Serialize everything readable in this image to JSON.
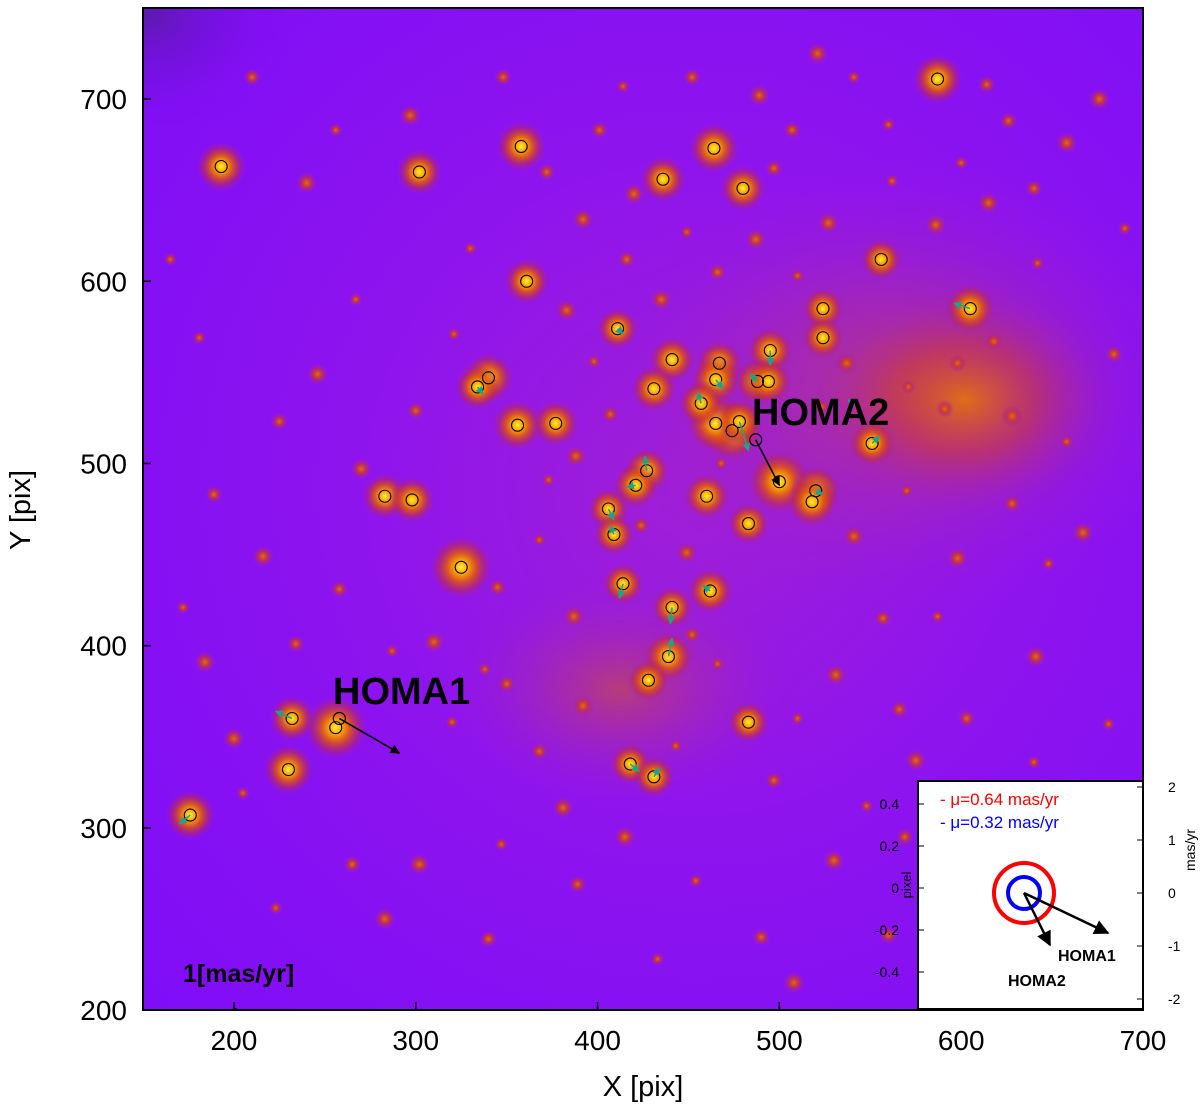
{
  "figure": {
    "type": "annotated-astronomical-image",
    "axes": {
      "xlabel": "X [pix]",
      "ylabel": "Y [pix]",
      "xlim": [
        150,
        700
      ],
      "ylim": [
        200,
        750
      ],
      "xticks": [
        "200",
        "300",
        "400",
        "500",
        "600",
        "700"
      ],
      "yticks": [
        "200",
        "300",
        "400",
        "500",
        "600",
        "700"
      ]
    },
    "colors": {
      "background": "#8a10f4",
      "star_core": "#ffe000",
      "star_glow": "#e06a00",
      "marker": "#000000",
      "arrow_small": "#1ea38a",
      "arrow_main": "#000000"
    },
    "labels": {
      "homa1": "HOMA1",
      "homa2": "HOMA2",
      "scale": "1[mas/yr]"
    },
    "homa1": {
      "x": 258,
      "y": 360,
      "dx": 33,
      "dy": -19
    },
    "homa2": {
      "x": 487,
      "y": 513,
      "dx": 13,
      "dy": -25
    },
    "bright_stars": [
      {
        "x": 325,
        "y": 443,
        "b": 1.0
      },
      {
        "x": 256,
        "y": 355,
        "b": 1.0
      },
      {
        "x": 500,
        "y": 490,
        "b": 1.0
      },
      {
        "x": 474,
        "y": 518,
        "b": 0.95
      },
      {
        "x": 465,
        "y": 522,
        "b": 0.9
      },
      {
        "x": 340,
        "y": 547,
        "b": 0.7
      },
      {
        "x": 356,
        "y": 521,
        "b": 0.7
      },
      {
        "x": 334,
        "y": 542,
        "b": 0.6
      },
      {
        "x": 377,
        "y": 522,
        "b": 0.6
      },
      {
        "x": 283,
        "y": 482,
        "b": 0.6
      },
      {
        "x": 298,
        "y": 480,
        "b": 0.6
      },
      {
        "x": 230,
        "y": 332,
        "b": 0.7
      },
      {
        "x": 232,
        "y": 360,
        "b": 0.6
      },
      {
        "x": 176,
        "y": 307,
        "b": 0.7
      },
      {
        "x": 193,
        "y": 663,
        "b": 0.7
      },
      {
        "x": 302,
        "y": 660,
        "b": 0.6
      },
      {
        "x": 358,
        "y": 674,
        "b": 0.7
      },
      {
        "x": 436,
        "y": 656,
        "b": 0.6
      },
      {
        "x": 464,
        "y": 673,
        "b": 0.7
      },
      {
        "x": 480,
        "y": 651,
        "b": 0.6
      },
      {
        "x": 587,
        "y": 711,
        "b": 0.7
      },
      {
        "x": 361,
        "y": 600,
        "b": 0.6
      },
      {
        "x": 556,
        "y": 612,
        "b": 0.5
      },
      {
        "x": 605,
        "y": 585,
        "b": 0.7
      },
      {
        "x": 524,
        "y": 585,
        "b": 0.5
      },
      {
        "x": 524,
        "y": 569,
        "b": 0.5
      },
      {
        "x": 495,
        "y": 562,
        "b": 0.6
      },
      {
        "x": 411,
        "y": 574,
        "b": 0.5
      },
      {
        "x": 441,
        "y": 557,
        "b": 0.6
      },
      {
        "x": 467,
        "y": 555,
        "b": 0.6
      },
      {
        "x": 465,
        "y": 546,
        "b": 0.7
      },
      {
        "x": 488,
        "y": 545,
        "b": 0.6
      },
      {
        "x": 494,
        "y": 545,
        "b": 0.6
      },
      {
        "x": 431,
        "y": 541,
        "b": 0.6
      },
      {
        "x": 457,
        "y": 533,
        "b": 0.6
      },
      {
        "x": 478,
        "y": 523,
        "b": 0.6
      },
      {
        "x": 551,
        "y": 511,
        "b": 0.6
      },
      {
        "x": 427,
        "y": 496,
        "b": 0.6
      },
      {
        "x": 421,
        "y": 488,
        "b": 0.6
      },
      {
        "x": 460,
        "y": 482,
        "b": 0.6
      },
      {
        "x": 520,
        "y": 485,
        "b": 0.7
      },
      {
        "x": 518,
        "y": 479,
        "b": 0.7
      },
      {
        "x": 406,
        "y": 475,
        "b": 0.5
      },
      {
        "x": 483,
        "y": 467,
        "b": 0.5
      },
      {
        "x": 409,
        "y": 461,
        "b": 0.5
      },
      {
        "x": 414,
        "y": 434,
        "b": 0.5
      },
      {
        "x": 462,
        "y": 430,
        "b": 0.6
      },
      {
        "x": 441,
        "y": 421,
        "b": 0.5
      },
      {
        "x": 439,
        "y": 394,
        "b": 0.7
      },
      {
        "x": 428,
        "y": 381,
        "b": 0.5
      },
      {
        "x": 483,
        "y": 358,
        "b": 0.5
      },
      {
        "x": 418,
        "y": 335,
        "b": 0.5
      },
      {
        "x": 431,
        "y": 328,
        "b": 0.5
      }
    ],
    "faint_stars": [
      {
        "x": 165,
        "y": 612
      },
      {
        "x": 210,
        "y": 712
      },
      {
        "x": 240,
        "y": 654
      },
      {
        "x": 267,
        "y": 590
      },
      {
        "x": 225,
        "y": 523
      },
      {
        "x": 270,
        "y": 497
      },
      {
        "x": 330,
        "y": 618
      },
      {
        "x": 372,
        "y": 660
      },
      {
        "x": 392,
        "y": 634
      },
      {
        "x": 414,
        "y": 707
      },
      {
        "x": 452,
        "y": 712
      },
      {
        "x": 521,
        "y": 725
      },
      {
        "x": 560,
        "y": 686
      },
      {
        "x": 614,
        "y": 708
      },
      {
        "x": 658,
        "y": 676
      },
      {
        "x": 642,
        "y": 610
      },
      {
        "x": 684,
        "y": 560
      },
      {
        "x": 667,
        "y": 462
      },
      {
        "x": 648,
        "y": 445
      },
      {
        "x": 628,
        "y": 478
      },
      {
        "x": 598,
        "y": 448
      },
      {
        "x": 587,
        "y": 416
      },
      {
        "x": 603,
        "y": 360
      },
      {
        "x": 641,
        "y": 394
      },
      {
        "x": 681,
        "y": 357
      },
      {
        "x": 566,
        "y": 365
      },
      {
        "x": 531,
        "y": 384
      },
      {
        "x": 510,
        "y": 360
      },
      {
        "x": 452,
        "y": 406
      },
      {
        "x": 387,
        "y": 416
      },
      {
        "x": 368,
        "y": 458
      },
      {
        "x": 345,
        "y": 432
      },
      {
        "x": 310,
        "y": 402
      },
      {
        "x": 287,
        "y": 397
      },
      {
        "x": 258,
        "y": 431
      },
      {
        "x": 200,
        "y": 349
      },
      {
        "x": 205,
        "y": 319
      },
      {
        "x": 265,
        "y": 280
      },
      {
        "x": 302,
        "y": 280
      },
      {
        "x": 347,
        "y": 291
      },
      {
        "x": 389,
        "y": 269
      },
      {
        "x": 415,
        "y": 295
      },
      {
        "x": 454,
        "y": 271
      },
      {
        "x": 490,
        "y": 240
      },
      {
        "x": 530,
        "y": 282
      },
      {
        "x": 548,
        "y": 312
      },
      {
        "x": 569,
        "y": 295
      },
      {
        "x": 602,
        "y": 321
      },
      {
        "x": 338,
        "y": 387
      },
      {
        "x": 368,
        "y": 342
      },
      {
        "x": 392,
        "y": 367
      },
      {
        "x": 466,
        "y": 390
      },
      {
        "x": 557,
        "y": 415
      },
      {
        "x": 541,
        "y": 460
      },
      {
        "x": 570,
        "y": 485
      },
      {
        "x": 591,
        "y": 530
      },
      {
        "x": 628,
        "y": 526
      },
      {
        "x": 658,
        "y": 512
      },
      {
        "x": 618,
        "y": 567
      },
      {
        "x": 586,
        "y": 631
      },
      {
        "x": 562,
        "y": 655
      },
      {
        "x": 507,
        "y": 683
      },
      {
        "x": 487,
        "y": 623
      },
      {
        "x": 449,
        "y": 627
      },
      {
        "x": 416,
        "y": 612
      },
      {
        "x": 383,
        "y": 584
      },
      {
        "x": 398,
        "y": 556
      },
      {
        "x": 407,
        "y": 527
      },
      {
        "x": 388,
        "y": 504
      },
      {
        "x": 373,
        "y": 491
      },
      {
        "x": 424,
        "y": 466
      },
      {
        "x": 449,
        "y": 451
      },
      {
        "x": 468,
        "y": 500
      },
      {
        "x": 523,
        "y": 531
      },
      {
        "x": 537,
        "y": 555
      },
      {
        "x": 571,
        "y": 542
      },
      {
        "x": 598,
        "y": 555
      },
      {
        "x": 527,
        "y": 632
      },
      {
        "x": 510,
        "y": 603
      },
      {
        "x": 466,
        "y": 605
      },
      {
        "x": 435,
        "y": 590
      },
      {
        "x": 321,
        "y": 571
      },
      {
        "x": 300,
        "y": 529
      },
      {
        "x": 246,
        "y": 549
      },
      {
        "x": 181,
        "y": 569
      },
      {
        "x": 189,
        "y": 483
      },
      {
        "x": 216,
        "y": 449
      },
      {
        "x": 172,
        "y": 421
      },
      {
        "x": 234,
        "y": 401
      },
      {
        "x": 184,
        "y": 391
      },
      {
        "x": 320,
        "y": 358
      },
      {
        "x": 350,
        "y": 379
      },
      {
        "x": 381,
        "y": 311
      },
      {
        "x": 443,
        "y": 345
      },
      {
        "x": 497,
        "y": 326
      },
      {
        "x": 575,
        "y": 337
      },
      {
        "x": 640,
        "y": 336
      },
      {
        "x": 682,
        "y": 300
      },
      {
        "x": 660,
        "y": 255
      },
      {
        "x": 612,
        "y": 253
      },
      {
        "x": 560,
        "y": 241
      },
      {
        "x": 508,
        "y": 215
      },
      {
        "x": 433,
        "y": 228
      },
      {
        "x": 340,
        "y": 239
      },
      {
        "x": 283,
        "y": 250
      },
      {
        "x": 223,
        "y": 256
      },
      {
        "x": 348,
        "y": 712
      },
      {
        "x": 297,
        "y": 691
      },
      {
        "x": 256,
        "y": 683
      },
      {
        "x": 401,
        "y": 683
      },
      {
        "x": 489,
        "y": 702
      },
      {
        "x": 541,
        "y": 712
      },
      {
        "x": 626,
        "y": 688
      },
      {
        "x": 676,
        "y": 700
      },
      {
        "x": 690,
        "y": 629
      },
      {
        "x": 640,
        "y": 651
      },
      {
        "x": 615,
        "y": 643
      },
      {
        "x": 600,
        "y": 665
      },
      {
        "x": 497,
        "y": 662
      },
      {
        "x": 420,
        "y": 648
      }
    ],
    "motion_arrows": [
      {
        "x": 232,
        "y": 360,
        "dx": -9,
        "dy": 4
      },
      {
        "x": 176,
        "y": 307,
        "dx": -6,
        "dy": -5
      },
      {
        "x": 605,
        "y": 585,
        "dx": -9,
        "dy": 3
      },
      {
        "x": 495,
        "y": 562,
        "dx": 0,
        "dy": -8
      },
      {
        "x": 551,
        "y": 511,
        "dx": 4,
        "dy": 4
      },
      {
        "x": 478,
        "y": 523,
        "dx": 5,
        "dy": -16
      },
      {
        "x": 465,
        "y": 546,
        "dx": 4,
        "dy": -5
      },
      {
        "x": 457,
        "y": 533,
        "dx": -2,
        "dy": 6
      },
      {
        "x": 427,
        "y": 496,
        "dx": -1,
        "dy": 8
      },
      {
        "x": 421,
        "y": 488,
        "dx": -5,
        "dy": -1
      },
      {
        "x": 520,
        "y": 485,
        "dx": 4,
        "dy": -2
      },
      {
        "x": 406,
        "y": 475,
        "dx": 3,
        "dy": -6
      },
      {
        "x": 409,
        "y": 461,
        "dx": -2,
        "dy": 5
      },
      {
        "x": 414,
        "y": 434,
        "dx": -2,
        "dy": -8
      },
      {
        "x": 462,
        "y": 430,
        "dx": -4,
        "dy": 3
      },
      {
        "x": 441,
        "y": 421,
        "dx": -1,
        "dy": -9
      },
      {
        "x": 439,
        "y": 394,
        "dx": 2,
        "dy": 10
      },
      {
        "x": 431,
        "y": 328,
        "dx": 3,
        "dy": 5
      },
      {
        "x": 418,
        "y": 335,
        "dx": 5,
        "dy": -4
      },
      {
        "x": 411,
        "y": 574,
        "dx": 3,
        "dy": -3
      },
      {
        "x": 334,
        "y": 542,
        "dx": 3,
        "dy": -4
      },
      {
        "x": 488,
        "y": 545,
        "dx": -4,
        "dy": 4
      },
      {
        "x": 541,
        "y": 532,
        "dx": -3,
        "dy": 3
      }
    ]
  },
  "inset": {
    "legend": [
      "- μ=0.64 mas/yr",
      "- μ=0.32 mas/yr"
    ],
    "legend_colors": [
      "#ff0000",
      "#0000ff"
    ],
    "left_label": "pixel",
    "right_label": "mas/yr",
    "left_ticks": [
      "0.4",
      "0.2",
      "0",
      "-0.2",
      "-0.4"
    ],
    "right_ticks": [
      "2",
      "1",
      "0",
      "-1",
      "-2"
    ],
    "homa1_label": "HOMA1",
    "homa2_label": "HOMA2"
  }
}
